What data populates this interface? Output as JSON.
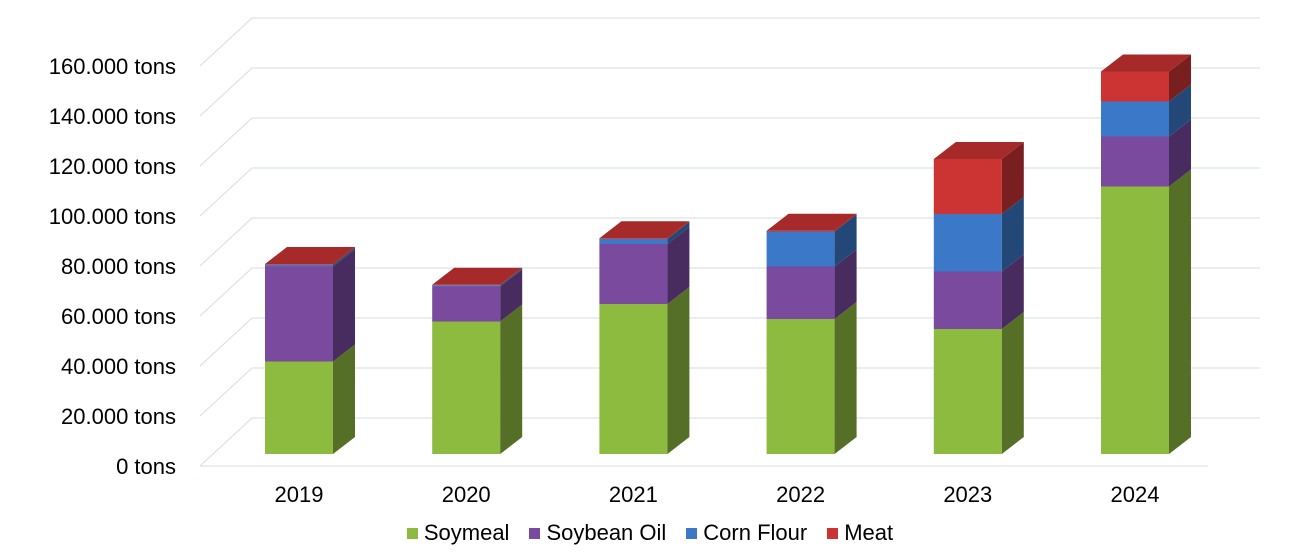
{
  "chart_data": {
    "type": "bar",
    "stacked": true,
    "style": "3d",
    "categories": [
      "2019",
      "2020",
      "2021",
      "2022",
      "2023",
      "2024"
    ],
    "series": [
      {
        "name": "Soymeal",
        "color": "#8dbb3f",
        "values": [
          37000,
          53000,
          60000,
          54000,
          50000,
          107000
        ]
      },
      {
        "name": "Soybean Oil",
        "color": "#7a4a9e",
        "values": [
          38000,
          14000,
          24000,
          21000,
          23000,
          20000
        ]
      },
      {
        "name": "Corn Flour",
        "color": "#3b78c7",
        "values": [
          700,
          500,
          2000,
          14000,
          23000,
          14000
        ]
      },
      {
        "name": "Meat",
        "color": "#cc3333",
        "values": [
          300,
          200,
          300,
          300,
          22000,
          12000
        ]
      }
    ],
    "y_ticks": [
      "0 tons",
      "20.000 tons",
      "40.000 tons",
      "60.000 tons",
      "80.000 tons",
      "100.000 tons",
      "120.000 tons",
      "140.000 tons",
      "160.000 tons"
    ],
    "ylim": [
      0,
      160000
    ],
    "grid": true,
    "legend_position": "bottom",
    "title": "",
    "xlabel": "",
    "ylabel": ""
  }
}
